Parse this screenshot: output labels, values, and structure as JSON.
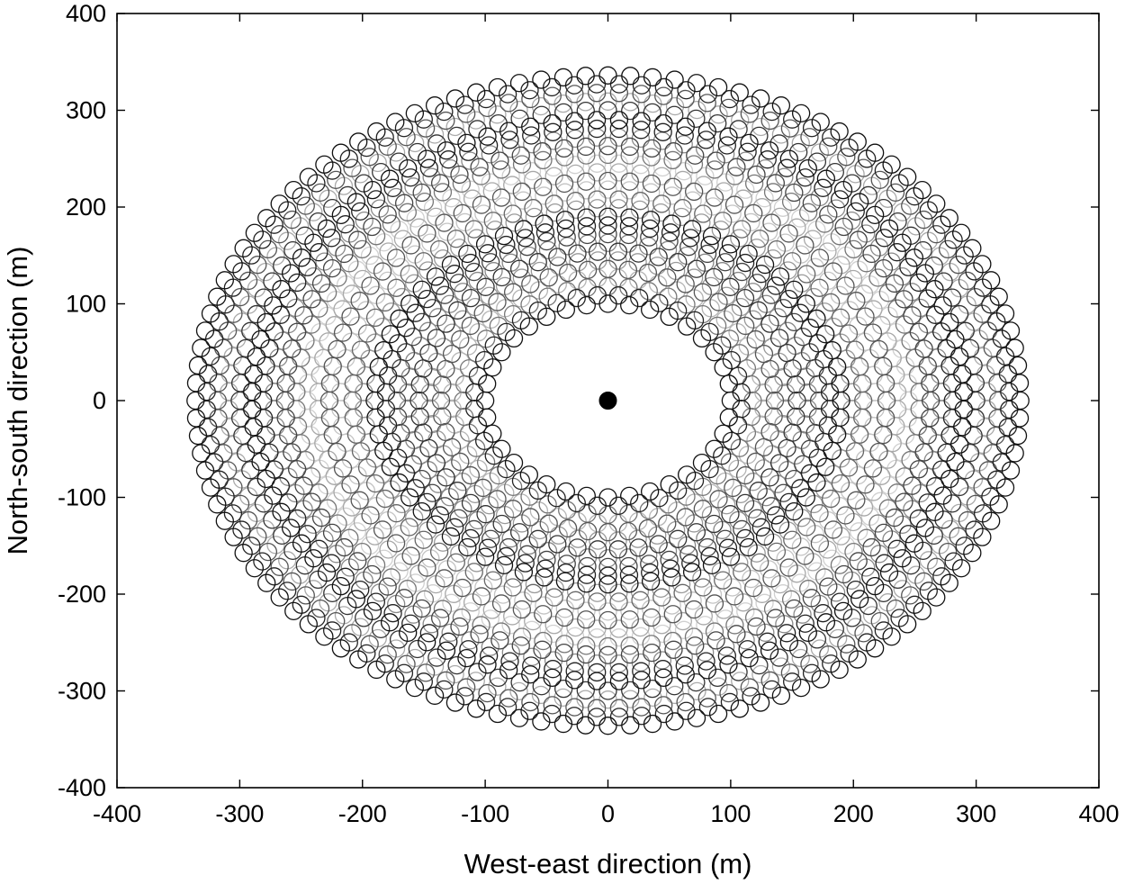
{
  "chart_data": {
    "type": "scatter",
    "title": "",
    "xlabel": "West-east direction (m)",
    "ylabel": "North-south direction (m)",
    "xlim": [
      -400,
      400
    ],
    "ylim": [
      -400,
      400
    ],
    "xticks": [
      "-400",
      "-300",
      "-200",
      "-100",
      "0",
      "100",
      "200",
      "300",
      "400"
    ],
    "yticks": [
      "400",
      "300",
      "200",
      "100",
      "0",
      "-100",
      "-200",
      "-300",
      "-400"
    ],
    "grid": false,
    "legend": "none",
    "marker": "open-circle",
    "center_point": {
      "x": 0,
      "y": 0
    },
    "rings": [
      {
        "semi_axis_x": 100,
        "semi_axis_y": 100,
        "count": 36,
        "color": "#111111"
      },
      {
        "semi_axis_x": 109,
        "semi_axis_y": 109,
        "count": 40,
        "color": "#222222"
      },
      {
        "semi_axis_x": 118,
        "semi_axis_y": 118,
        "count": 44,
        "color": "#777777"
      },
      {
        "semi_axis_x": 127,
        "semi_axis_y": 127,
        "count": 48,
        "color": "#b5b5b5"
      },
      {
        "semi_axis_x": 136,
        "semi_axis_y": 136,
        "count": 52,
        "color": "#555555"
      },
      {
        "semi_axis_x": 145,
        "semi_axis_y": 145,
        "count": 56,
        "color": "#999999"
      },
      {
        "semi_axis_x": 154,
        "semi_axis_y": 154,
        "count": 58,
        "color": "#333333"
      },
      {
        "semi_axis_x": 163,
        "semi_axis_y": 163,
        "count": 62,
        "color": "#888888"
      },
      {
        "semi_axis_x": 172,
        "semi_axis_y": 172,
        "count": 64,
        "color": "#444444"
      },
      {
        "semi_axis_x": 181,
        "semi_axis_y": 181,
        "count": 66,
        "color": "#222222"
      },
      {
        "semi_axis_x": 190,
        "semi_axis_y": 190,
        "count": 68,
        "color": "#111111"
      },
      {
        "semi_axis_x": 199,
        "semi_axis_y": 199,
        "count": 72,
        "color": "#9a9a9a"
      },
      {
        "semi_axis_x": 208,
        "semi_axis_y": 208,
        "count": 74,
        "color": "#666666"
      },
      {
        "semi_axis_x": 218,
        "semi_axis_y": 218,
        "count": 78,
        "color": "#c4c4c4"
      },
      {
        "semi_axis_x": 227,
        "semi_axis_y": 227,
        "count": 80,
        "color": "#555555"
      },
      {
        "semi_axis_x": 236,
        "semi_axis_y": 236,
        "count": 84,
        "color": "#a8a8a8"
      },
      {
        "semi_axis_x": 245,
        "semi_axis_y": 245,
        "count": 86,
        "color": "#d0d0d0"
      },
      {
        "semi_axis_x": 254,
        "semi_axis_y": 254,
        "count": 90,
        "color": "#777777"
      },
      {
        "semi_axis_x": 263,
        "semi_axis_y": 263,
        "count": 92,
        "color": "#444444"
      },
      {
        "semi_axis_x": 272,
        "semi_axis_y": 272,
        "count": 96,
        "color": "#8a8a8a"
      },
      {
        "semi_axis_x": 281,
        "semi_axis_y": 281,
        "count": 98,
        "color": "#222222"
      },
      {
        "semi_axis_x": 290,
        "semi_axis_y": 290,
        "count": 100,
        "color": "#111111"
      },
      {
        "semi_axis_x": 300,
        "semi_axis_y": 300,
        "count": 104,
        "color": "#333333"
      },
      {
        "semi_axis_x": 309,
        "semi_axis_y": 309,
        "count": 106,
        "color": "#aaaaaa"
      },
      {
        "semi_axis_x": 318,
        "semi_axis_y": 318,
        "count": 110,
        "color": "#555555"
      },
      {
        "semi_axis_x": 327,
        "semi_axis_y": 327,
        "count": 112,
        "color": "#222222"
      },
      {
        "semi_axis_x": 336,
        "semi_axis_y": 336,
        "count": 116,
        "color": "#111111"
      }
    ]
  }
}
